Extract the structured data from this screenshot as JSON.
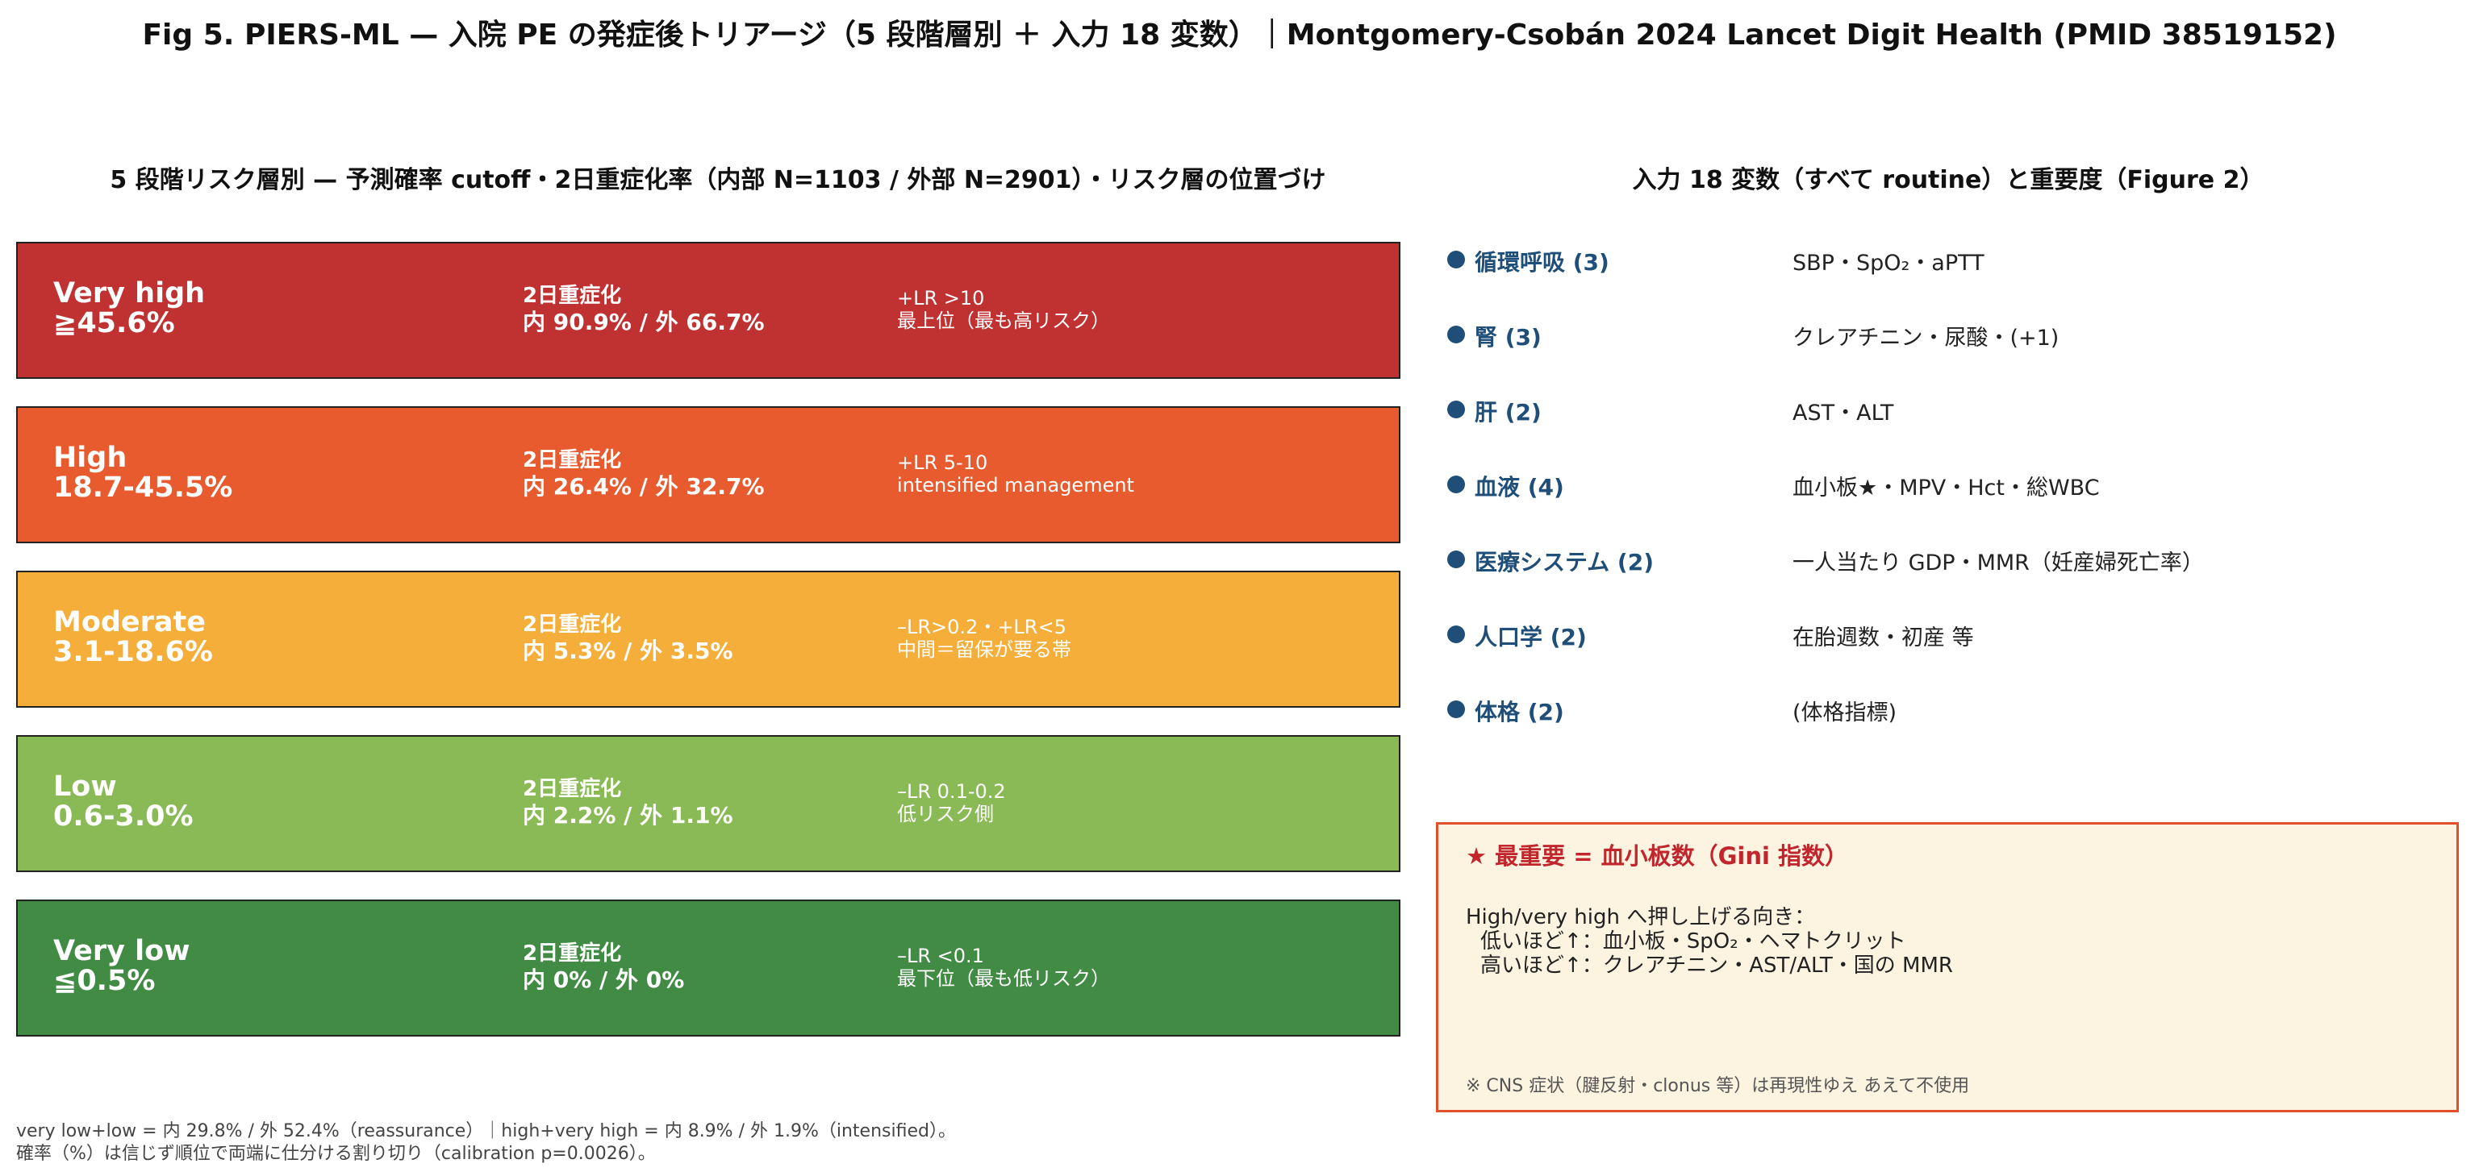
{
  "title": "Fig 5. PIERS-ML — 入院 PE の発症後トリアージ（5 段階層別 ＋ 入力 18 変数）｜Montgomery-Csobán 2024 Lancet Digit Health (PMID 38519152)",
  "left_panel": {
    "header": "5 段階リスク層別 — 予測確率 cutoff・2日重症化率（内部 N=1103 / 外部 N=2901）・リスク層の位置づけ",
    "tiers": [
      {
        "name": "Very high",
        "cutoff": "≧45.6%",
        "outcome_label": "2日重症化",
        "outcome_value": "内 90.9% / 外 66.7%",
        "lr": "+LR >10",
        "note": "最上位（最も高リスク）",
        "color": "#c03131"
      },
      {
        "name": "High",
        "cutoff": "18.7-45.5%",
        "outcome_label": "2日重症化",
        "outcome_value": "内 26.4% / 外 32.7%",
        "lr": "+LR 5-10",
        "note": "intensified management",
        "color": "#e85b2f"
      },
      {
        "name": "Moderate",
        "cutoff": "3.1-18.6%",
        "outcome_label": "2日重症化",
        "outcome_value": "内 5.3% / 外 3.5%",
        "lr": "–LR>0.2・+LR<5",
        "note": "中間＝留保が要る帯",
        "color": "#f5ae3a"
      },
      {
        "name": "Low",
        "cutoff": "0.6-3.0%",
        "outcome_label": "2日重症化",
        "outcome_value": "内 2.2% / 外 1.1%",
        "lr": "–LR 0.1-0.2",
        "note": "低リスク側",
        "color": "#8aba55"
      },
      {
        "name": "Very low",
        "cutoff": "≦0.5%",
        "outcome_label": "2日重症化",
        "outcome_value": "内 0% / 外 0%",
        "lr": "–LR <0.1",
        "note": "最下位（最も低リスク）",
        "color": "#428b45"
      }
    ],
    "footnote_line1": "very low+low = 内 29.8% / 外 52.4%（reassurance）｜high+very high = 内 8.9% / 外 1.9%（intensified）。",
    "footnote_line2": "確率（%）は信じず順位で両端に仕分ける割り切り（calibration p=0.0026）。"
  },
  "right_panel": {
    "header": "入力 18 変数（すべて routine）と重要度（Figure 2）",
    "groups": [
      {
        "name": "循環呼吸 (3)",
        "vars": "SBP・SpO₂・aPTT"
      },
      {
        "name": "腎 (3)",
        "vars": "クレアチニン・尿酸・(+1)"
      },
      {
        "name": "肝 (2)",
        "vars": "AST・ALT"
      },
      {
        "name": "血液 (4)",
        "vars": "血小板★・MPV・Hct・総WBC"
      },
      {
        "name": "医療システム (2)",
        "vars": "一人当たり GDP・MMR（妊産婦死亡率）"
      },
      {
        "name": "人口学 (2)",
        "vars": "在胎週数・初産 等"
      },
      {
        "name": "体格 (2)",
        "vars": "(体格指標)"
      }
    ],
    "callout": {
      "title": "★ 最重要 = 血小板数（Gini 指数）",
      "line1": "High/very high へ押し上げる向き：",
      "line2": "低いほど↑：血小板・SpO₂・ヘマトクリット",
      "line3": "高いほど↑：クレアチニン・AST/ALT・国の MMR",
      "note": "※ CNS 症状（腱反射・clonus 等）は再現性ゆえ あえて不使用"
    }
  }
}
